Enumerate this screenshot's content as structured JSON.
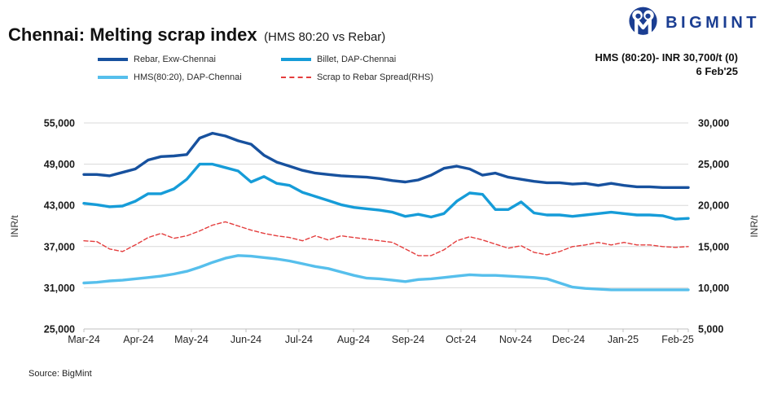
{
  "header": {
    "title": "Chennai: Melting scrap index",
    "subtitle": "(HMS 80:20 vs Rebar)",
    "brand": "BIGMINT",
    "price_line": "HMS (80:20)- INR 30,700/t (0)",
    "date_line": "6 Feb'25"
  },
  "legend": [
    {
      "label": "Rebar, Exw-Chennai",
      "color": "#17519e",
      "dashed": false
    },
    {
      "label": "Billet, DAP-Chennai",
      "color": "#169cd8",
      "dashed": false
    },
    {
      "label": "HMS(80:20), DAP-Chennai",
      "color": "#56bfec",
      "dashed": false
    },
    {
      "label": "Scrap to Rebar Spread(RHS)",
      "color": "#e43d3d",
      "dashed": true
    }
  ],
  "footer": {
    "source": "Source: BigMint"
  },
  "chart_data": {
    "type": "line",
    "title": "Chennai: Melting scrap index (HMS 80:20 vs Rebar)",
    "x_axis": {
      "labels": [
        "Mar-24",
        "Apr-24",
        "May-24",
        "Jun-24",
        "Jul-24",
        "Aug-24",
        "Sep-24",
        "Oct-24",
        "Nov-24",
        "Dec-24",
        "Jan-25",
        "Feb-25"
      ]
    },
    "left_axis": {
      "label": "INR/t",
      "min": 25000,
      "max": 55000,
      "step": 6000
    },
    "right_axis": {
      "label": "INR/t",
      "min": 5000,
      "max": 30000,
      "step": 5000
    },
    "grid": true,
    "legend_position": "top",
    "series": [
      {
        "name": "Rebar, Exw-Chennai",
        "axis": "left",
        "color": "#17519e",
        "width": 3.4,
        "dash": null,
        "values": [
          47500,
          47500,
          47300,
          47800,
          48300,
          49600,
          50100,
          50200,
          50400,
          52800,
          53500,
          53100,
          52400,
          51900,
          50300,
          49300,
          48700,
          48100,
          47700,
          47500,
          47300,
          47200,
          47100,
          46900,
          46600,
          46400,
          46700,
          47400,
          48400,
          48700,
          48300,
          47400,
          47700,
          47100,
          46800,
          46500,
          46300,
          46300,
          46100,
          46200,
          45900,
          46200,
          45900,
          45700,
          45700,
          45600,
          45600,
          45600
        ]
      },
      {
        "name": "Billet, DAP-Chennai",
        "axis": "left",
        "color": "#169cd8",
        "width": 3.4,
        "dash": null,
        "values": [
          43300,
          43100,
          42800,
          42900,
          43600,
          44700,
          44700,
          45400,
          46800,
          49000,
          49000,
          48500,
          48000,
          46400,
          47200,
          46200,
          45900,
          44900,
          44300,
          43700,
          43100,
          42700,
          42500,
          42300,
          42000,
          41400,
          41700,
          41300,
          41800,
          43600,
          44800,
          44600,
          42400,
          42400,
          43500,
          41900,
          41600,
          41600,
          41400,
          41600,
          41800,
          42000,
          41800,
          41600,
          41600,
          41500,
          41000,
          41100
        ]
      },
      {
        "name": "HMS(80:20), DAP-Chennai",
        "axis": "left",
        "color": "#56bfec",
        "width": 3.4,
        "dash": null,
        "values": [
          31700,
          31800,
          32000,
          32100,
          32300,
          32500,
          32700,
          33000,
          33400,
          34000,
          34700,
          35300,
          35700,
          35600,
          35400,
          35200,
          34900,
          34500,
          34100,
          33800,
          33300,
          32800,
          32400,
          32300,
          32100,
          31900,
          32200,
          32300,
          32500,
          32700,
          32900,
          32800,
          32800,
          32700,
          32600,
          32500,
          32300,
          31700,
          31100,
          30900,
          30800,
          30700,
          30700,
          30700,
          30700,
          30700,
          30700,
          30700
        ]
      },
      {
        "name": "Scrap to Rebar Spread(RHS)",
        "axis": "right",
        "color": "#e43d3d",
        "width": 1.4,
        "dash": "5,3",
        "values": [
          15700,
          15600,
          14700,
          14400,
          15200,
          16100,
          16600,
          16000,
          16300,
          16900,
          17600,
          18000,
          17500,
          17000,
          16600,
          16300,
          16100,
          15700,
          16300,
          15800,
          16300,
          16100,
          15900,
          15700,
          15500,
          14700,
          13900,
          13900,
          14600,
          15700,
          16200,
          15800,
          15300,
          14800,
          15100,
          14300,
          14000,
          14400,
          15000,
          15200,
          15500,
          15200,
          15500,
          15200,
          15200,
          15000,
          14900,
          15000
        ]
      }
    ]
  }
}
